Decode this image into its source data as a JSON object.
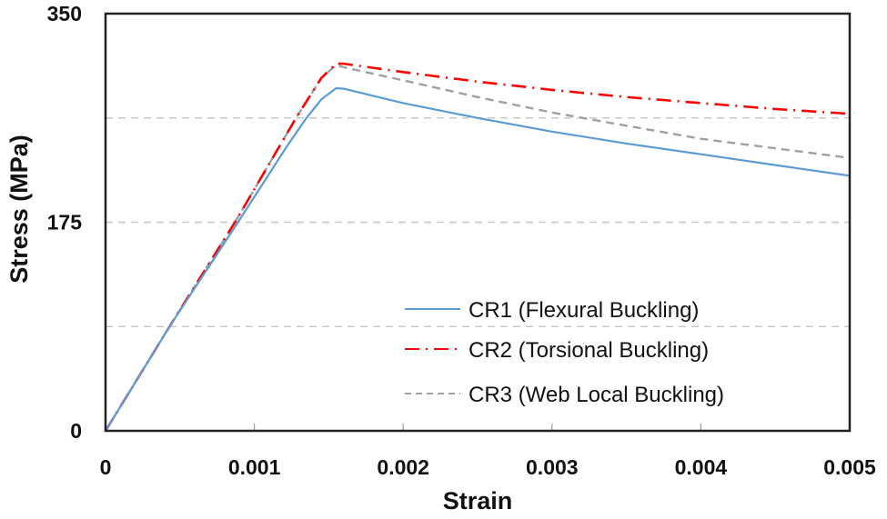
{
  "chart_data": {
    "type": "line",
    "title": "",
    "xlabel": "Strain",
    "ylabel": "Stress (MPa)",
    "xlim": [
      0,
      0.005
    ],
    "ylim": [
      0,
      350
    ],
    "x_ticks": [
      0,
      0.001,
      0.002,
      0.003,
      0.004,
      0.005
    ],
    "x_tick_labels": [
      "0",
      "0.001",
      "0.002",
      "0.003",
      "0.004",
      "0.005"
    ],
    "y_ticks": [
      0,
      175,
      350
    ],
    "y_tick_labels": [
      "0",
      "175",
      "350"
    ],
    "gridlines_y": [
      87.5,
      175,
      262.5
    ],
    "grid": "horizontal dashed",
    "legend_position": "lower right (inside plot)",
    "series": [
      {
        "name": "CR1 (Flexural Buckling)",
        "color": "#5b9bd5",
        "style": "solid",
        "x": [
          0,
          0.00043,
          0.00089,
          0.00122,
          0.00135,
          0.00145,
          0.00155,
          0.0016,
          0.002,
          0.0025,
          0.003,
          0.0035,
          0.004,
          0.0045,
          0.005
        ],
        "y": [
          0,
          87.5,
          175,
          239,
          262.5,
          278,
          287.5,
          287,
          275,
          262.5,
          251,
          241,
          232,
          223,
          214
        ]
      },
      {
        "name": "CR2 (Torsional Buckling)",
        "color": "#ff0000",
        "style": "dash-dot",
        "x": [
          0,
          0.00043,
          0.00087,
          0.00117,
          0.00128,
          0.00145,
          0.00155,
          0.0016,
          0.002,
          0.0025,
          0.003,
          0.0035,
          0.004,
          0.0045,
          0.005
        ],
        "y": [
          0,
          87.5,
          175,
          239,
          262.5,
          296,
          308,
          308,
          301,
          293,
          286,
          280,
          275,
          270,
          266
        ]
      },
      {
        "name": "CR3 (Web Local Buckling)",
        "color": "#a0a0a0",
        "style": "dashed",
        "x": [
          0,
          0.00043,
          0.00087,
          0.00117,
          0.00128,
          0.00145,
          0.00155,
          0.0016,
          0.002,
          0.0025,
          0.003,
          0.0035,
          0.004,
          0.0045,
          0.005
        ],
        "y": [
          0,
          87.5,
          175,
          239,
          262.5,
          296,
          307,
          305,
          294,
          280,
          267,
          256,
          245,
          237,
          229
        ]
      }
    ]
  },
  "axes": {
    "x_title": "Strain",
    "y_title": "Stress (MPa)"
  },
  "legend": {
    "items": [
      {
        "label": "CR1 (Flexural Buckling)"
      },
      {
        "label": "CR2 (Torsional Buckling)"
      },
      {
        "label": "CR3 (Web Local Buckling)"
      }
    ]
  }
}
